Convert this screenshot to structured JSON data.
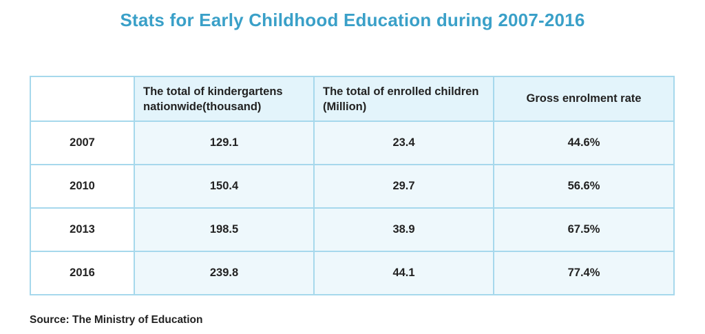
{
  "chart_data": {
    "type": "table",
    "title": "Stats for Early Childhood Education during 2007-2016",
    "columns": [
      "",
      "The total of kindergartens nationwide(thousand)",
      "The total of enrolled children (Million)",
      "Gross enrolment rate"
    ],
    "rows": [
      [
        "2007",
        "129.1",
        "23.4",
        "44.6%"
      ],
      [
        "2010",
        "150.4",
        "29.7",
        "56.6%"
      ],
      [
        "2013",
        "198.5",
        "38.9",
        "67.5%"
      ],
      [
        "2016",
        "239.8",
        "44.1",
        "77.4%"
      ]
    ],
    "source": "Source: The Ministry of Education"
  },
  "colors": {
    "title": "#3aa0c8",
    "border": "#a6d8ec",
    "header_fill": "#e3f4fb",
    "cell_fill": "#eef8fc"
  }
}
